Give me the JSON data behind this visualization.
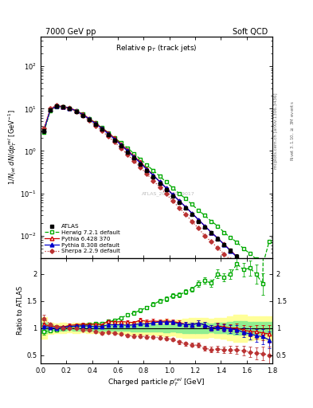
{
  "title_left": "7000 GeV pp",
  "title_right": "Soft QCD",
  "panel_title": "Relative p$_T$ (track jets)",
  "xlabel": "Charged particle $p_T^{rel}$ [GeV]",
  "ylabel_main": "$1/N_{jet}$ $dN/dp_T^{rel}$ [GeV$^{-1}$]",
  "ylabel_ratio": "Ratio to ATLAS",
  "watermark": "ATLAS_2011_I919017",
  "atlas_x": [
    0.025,
    0.075,
    0.125,
    0.175,
    0.225,
    0.275,
    0.325,
    0.375,
    0.425,
    0.475,
    0.525,
    0.575,
    0.625,
    0.675,
    0.725,
    0.775,
    0.825,
    0.875,
    0.925,
    0.975,
    1.025,
    1.075,
    1.125,
    1.175,
    1.225,
    1.275,
    1.325,
    1.375,
    1.425,
    1.475,
    1.525,
    1.575,
    1.625,
    1.675,
    1.725,
    1.775
  ],
  "atlas_y": [
    3.0,
    9.5,
    11.5,
    11.0,
    10.0,
    8.5,
    7.0,
    5.5,
    4.3,
    3.3,
    2.4,
    1.8,
    1.3,
    0.95,
    0.68,
    0.48,
    0.34,
    0.24,
    0.17,
    0.12,
    0.085,
    0.062,
    0.045,
    0.032,
    0.022,
    0.016,
    0.012,
    0.0085,
    0.0062,
    0.0045,
    0.0032,
    0.0024,
    0.0018,
    0.0014,
    0.0011,
    0.0009
  ],
  "atlas_yerr": [
    0.3,
    0.5,
    0.5,
    0.5,
    0.4,
    0.4,
    0.3,
    0.25,
    0.2,
    0.15,
    0.12,
    0.09,
    0.07,
    0.05,
    0.04,
    0.03,
    0.02,
    0.015,
    0.012,
    0.009,
    0.006,
    0.005,
    0.004,
    0.003,
    0.002,
    0.0015,
    0.001,
    0.0008,
    0.0006,
    0.0005,
    0.0004,
    0.0003,
    0.0002,
    0.00015,
    0.00012,
    0.0001
  ],
  "herwig_x": [
    0.025,
    0.075,
    0.125,
    0.175,
    0.225,
    0.275,
    0.325,
    0.375,
    0.425,
    0.475,
    0.525,
    0.575,
    0.625,
    0.675,
    0.725,
    0.775,
    0.825,
    0.875,
    0.925,
    0.975,
    1.025,
    1.075,
    1.125,
    1.175,
    1.225,
    1.275,
    1.325,
    1.375,
    1.425,
    1.475,
    1.525,
    1.575,
    1.625,
    1.675,
    1.725,
    1.775
  ],
  "herwig_y": [
    2.8,
    9.0,
    11.2,
    11.0,
    10.2,
    8.8,
    7.35,
    5.9,
    4.65,
    3.6,
    2.7,
    2.05,
    1.55,
    1.18,
    0.87,
    0.64,
    0.47,
    0.345,
    0.255,
    0.185,
    0.136,
    0.1,
    0.075,
    0.055,
    0.04,
    0.03,
    0.022,
    0.017,
    0.012,
    0.009,
    0.007,
    0.005,
    0.0038,
    0.0028,
    0.002,
    0.0072
  ],
  "herwig_yerr": [
    0.15,
    0.25,
    0.25,
    0.25,
    0.22,
    0.2,
    0.17,
    0.13,
    0.1,
    0.08,
    0.06,
    0.05,
    0.035,
    0.027,
    0.02,
    0.015,
    0.011,
    0.008,
    0.006,
    0.004,
    0.003,
    0.0023,
    0.0018,
    0.0013,
    0.001,
    0.0007,
    0.0005,
    0.0004,
    0.0003,
    0.0002,
    0.00015,
    0.00012,
    9e-05,
    7e-05,
    5e-05,
    0.0002
  ],
  "pythia6_x": [
    0.025,
    0.075,
    0.125,
    0.175,
    0.225,
    0.275,
    0.325,
    0.375,
    0.425,
    0.475,
    0.525,
    0.575,
    0.625,
    0.675,
    0.725,
    0.775,
    0.825,
    0.875,
    0.925,
    0.975,
    1.025,
    1.075,
    1.125,
    1.175,
    1.225,
    1.275,
    1.325,
    1.375,
    1.425,
    1.475,
    1.525,
    1.575,
    1.625,
    1.675,
    1.725,
    1.775
  ],
  "pythia6_y": [
    3.2,
    9.8,
    11.8,
    11.2,
    10.5,
    9.0,
    7.5,
    5.9,
    4.6,
    3.5,
    2.7,
    2.0,
    1.45,
    1.05,
    0.75,
    0.55,
    0.38,
    0.27,
    0.19,
    0.135,
    0.095,
    0.068,
    0.048,
    0.034,
    0.024,
    0.017,
    0.012,
    0.0088,
    0.0063,
    0.0045,
    0.0032,
    0.0023,
    0.0017,
    0.0013,
    0.001,
    0.0008
  ],
  "pythia6_yerr": [
    0.18,
    0.28,
    0.28,
    0.27,
    0.25,
    0.22,
    0.18,
    0.14,
    0.11,
    0.085,
    0.065,
    0.05,
    0.035,
    0.026,
    0.019,
    0.014,
    0.009,
    0.007,
    0.005,
    0.0035,
    0.0025,
    0.0018,
    0.0013,
    0.0009,
    0.0007,
    0.0005,
    0.0004,
    0.0003,
    0.0002,
    0.00015,
    0.00011,
    8e-05,
    6e-05,
    5e-05,
    4e-05,
    3e-05
  ],
  "pythia8_x": [
    0.025,
    0.075,
    0.125,
    0.175,
    0.225,
    0.275,
    0.325,
    0.375,
    0.425,
    0.475,
    0.525,
    0.575,
    0.625,
    0.675,
    0.725,
    0.775,
    0.825,
    0.875,
    0.925,
    0.975,
    1.025,
    1.075,
    1.125,
    1.175,
    1.225,
    1.275,
    1.325,
    1.375,
    1.425,
    1.475,
    1.525,
    1.575,
    1.625,
    1.675,
    1.725,
    1.775
  ],
  "pythia8_y": [
    3.1,
    9.6,
    11.4,
    11.1,
    10.3,
    8.8,
    7.3,
    5.7,
    4.4,
    3.4,
    2.55,
    1.9,
    1.38,
    1.0,
    0.72,
    0.52,
    0.365,
    0.265,
    0.188,
    0.133,
    0.094,
    0.067,
    0.048,
    0.034,
    0.024,
    0.017,
    0.012,
    0.0087,
    0.0062,
    0.0044,
    0.0031,
    0.0022,
    0.0016,
    0.0012,
    0.00092,
    0.0007
  ],
  "pythia8_yerr": [
    0.17,
    0.27,
    0.27,
    0.26,
    0.24,
    0.21,
    0.17,
    0.14,
    0.11,
    0.082,
    0.062,
    0.047,
    0.033,
    0.024,
    0.018,
    0.013,
    0.009,
    0.006,
    0.005,
    0.0033,
    0.0024,
    0.0017,
    0.0012,
    0.00088,
    0.00063,
    0.00045,
    0.00033,
    0.00024,
    0.00017,
    0.00013,
    0.0001,
    7e-05,
    5e-05,
    4e-05,
    3e-05,
    2e-05
  ],
  "sherpa_x": [
    0.025,
    0.075,
    0.125,
    0.175,
    0.225,
    0.275,
    0.325,
    0.375,
    0.425,
    0.475,
    0.525,
    0.575,
    0.625,
    0.675,
    0.725,
    0.775,
    0.825,
    0.875,
    0.925,
    0.975,
    1.025,
    1.075,
    1.125,
    1.175,
    1.225,
    1.275,
    1.325,
    1.375,
    1.425,
    1.475,
    1.525,
    1.575,
    1.625,
    1.675,
    1.725,
    1.775
  ],
  "sherpa_y": [
    3.5,
    10.2,
    11.9,
    11.0,
    10.0,
    8.5,
    6.8,
    5.3,
    4.0,
    3.0,
    2.2,
    1.62,
    1.15,
    0.82,
    0.58,
    0.41,
    0.285,
    0.2,
    0.14,
    0.097,
    0.067,
    0.046,
    0.032,
    0.022,
    0.015,
    0.01,
    0.0072,
    0.0052,
    0.0037,
    0.0027,
    0.0019,
    0.0014,
    0.001,
    0.00075,
    0.00058,
    0.00045
  ],
  "sherpa_yerr": [
    0.2,
    0.3,
    0.3,
    0.28,
    0.25,
    0.22,
    0.17,
    0.14,
    0.1,
    0.078,
    0.058,
    0.043,
    0.031,
    0.022,
    0.016,
    0.011,
    0.008,
    0.0055,
    0.004,
    0.0028,
    0.002,
    0.0014,
    0.001,
    0.0007,
    0.0005,
    0.0004,
    0.0003,
    0.0002,
    0.00015,
    0.00011,
    8e-05,
    6e-05,
    4e-05,
    3e-05,
    2.5e-05,
    2e-05
  ],
  "atlas_color": "#000000",
  "herwig_color": "#00aa00",
  "pythia6_color": "#cc0000",
  "pythia8_color": "#0000cc",
  "sherpa_color": "#bb3333",
  "xlim": [
    0.0,
    1.8
  ],
  "ylim_main": [
    0.003,
    500
  ],
  "ylim_ratio": [
    0.35,
    2.3
  ],
  "ratio_herwig_y": [
    0.93,
    0.95,
    0.97,
    1.0,
    1.02,
    1.035,
    1.05,
    1.07,
    1.08,
    1.09,
    1.125,
    1.14,
    1.19,
    1.24,
    1.28,
    1.33,
    1.38,
    1.44,
    1.5,
    1.54,
    1.6,
    1.61,
    1.67,
    1.72,
    1.82,
    1.88,
    1.83,
    2.0,
    1.94,
    2.0,
    2.19,
    2.08,
    2.11,
    2.0,
    1.82,
    8.0
  ],
  "ratio_pythia6_y": [
    1.07,
    1.03,
    1.03,
    1.02,
    1.05,
    1.06,
    1.07,
    1.07,
    1.07,
    1.06,
    1.13,
    1.11,
    1.12,
    1.11,
    1.1,
    1.15,
    1.12,
    1.13,
    1.12,
    1.13,
    1.12,
    1.1,
    1.07,
    1.06,
    1.09,
    1.06,
    1.0,
    1.04,
    1.02,
    1.0,
    1.0,
    0.96,
    0.94,
    0.93,
    0.91,
    0.89
  ],
  "ratio_pythia8_y": [
    1.03,
    1.01,
    0.99,
    1.01,
    1.03,
    1.035,
    1.04,
    1.04,
    1.02,
    1.03,
    1.06,
    1.06,
    1.06,
    1.05,
    1.06,
    1.083,
    1.07,
    1.1,
    1.11,
    1.11,
    1.11,
    1.08,
    1.07,
    1.06,
    1.09,
    1.06,
    1.0,
    1.02,
    1.0,
    0.98,
    0.97,
    0.92,
    0.89,
    0.86,
    0.84,
    0.78
  ],
  "ratio_sherpa_y": [
    1.17,
    1.07,
    1.03,
    1.0,
    1.0,
    1.0,
    0.97,
    0.96,
    0.93,
    0.91,
    0.92,
    0.9,
    0.885,
    0.863,
    0.853,
    0.854,
    0.838,
    0.833,
    0.824,
    0.808,
    0.79,
    0.742,
    0.711,
    0.688,
    0.682,
    0.625,
    0.6,
    0.612,
    0.597,
    0.6,
    0.594,
    0.583,
    0.556,
    0.536,
    0.527,
    0.5
  ],
  "ratio_herwig_err": [
    0.06,
    0.03,
    0.02,
    0.02,
    0.022,
    0.024,
    0.025,
    0.025,
    0.024,
    0.025,
    0.026,
    0.028,
    0.028,
    0.03,
    0.032,
    0.035,
    0.035,
    0.038,
    0.04,
    0.042,
    0.04,
    0.042,
    0.045,
    0.048,
    0.055,
    0.06,
    0.065,
    0.08,
    0.08,
    0.09,
    0.1,
    0.12,
    0.14,
    0.18,
    0.2,
    1.5
  ],
  "ratio_pythia6_err": [
    0.07,
    0.032,
    0.026,
    0.026,
    0.026,
    0.028,
    0.028,
    0.028,
    0.028,
    0.028,
    0.032,
    0.032,
    0.032,
    0.032,
    0.032,
    0.036,
    0.034,
    0.036,
    0.036,
    0.038,
    0.038,
    0.04,
    0.04,
    0.042,
    0.048,
    0.05,
    0.052,
    0.06,
    0.065,
    0.07,
    0.08,
    0.09,
    0.1,
    0.12,
    0.14,
    0.16
  ],
  "ratio_pythia8_err": [
    0.065,
    0.03,
    0.025,
    0.025,
    0.025,
    0.026,
    0.026,
    0.028,
    0.027,
    0.027,
    0.03,
    0.03,
    0.03,
    0.03,
    0.031,
    0.034,
    0.033,
    0.035,
    0.038,
    0.038,
    0.038,
    0.04,
    0.04,
    0.042,
    0.048,
    0.05,
    0.052,
    0.06,
    0.065,
    0.07,
    0.08,
    0.09,
    0.1,
    0.12,
    0.14,
    0.16
  ],
  "ratio_sherpa_err": [
    0.07,
    0.032,
    0.026,
    0.025,
    0.025,
    0.026,
    0.026,
    0.028,
    0.027,
    0.027,
    0.03,
    0.03,
    0.03,
    0.03,
    0.031,
    0.032,
    0.032,
    0.033,
    0.034,
    0.034,
    0.034,
    0.036,
    0.036,
    0.038,
    0.042,
    0.048,
    0.05,
    0.058,
    0.06,
    0.068,
    0.075,
    0.085,
    0.095,
    0.11,
    0.13,
    0.15
  ],
  "atlas_band_inner": "#90ee90",
  "atlas_band_outer": "#ffff99"
}
